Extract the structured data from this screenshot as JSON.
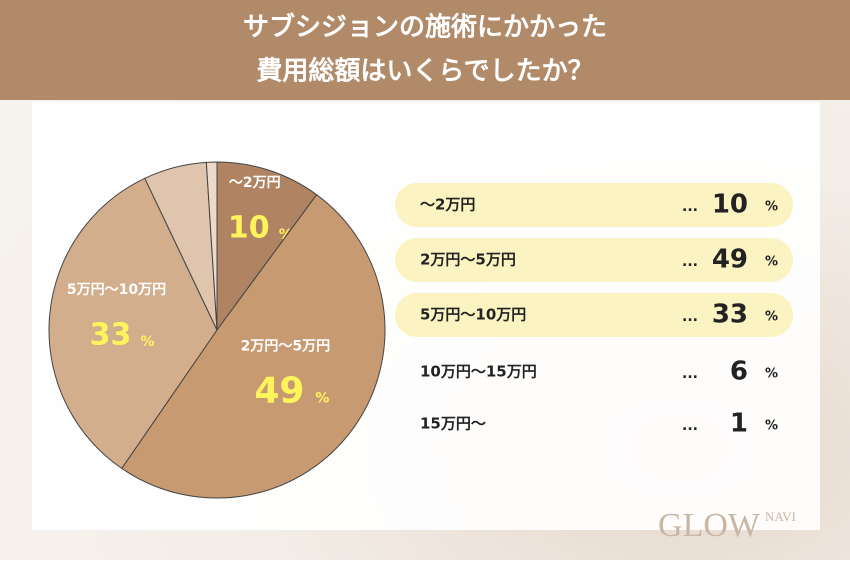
{
  "chart_data": {
    "type": "pie",
    "title": [
      "サブシジョンの施術にかかった",
      "費用総額はいくらでしたか？"
    ],
    "categories": [
      "〜2万円",
      "2万円〜5万円",
      "5万円〜10万円",
      "10万円〜15万円",
      "15万円〜"
    ],
    "values": [
      10,
      49,
      33,
      6,
      1
    ],
    "unit": "%",
    "leader": "...",
    "colors": [
      "#b08462",
      "#c89a72",
      "#d3ae8d",
      "#dfc4ae",
      "#ecd9c8"
    ],
    "logo": "GLOW",
    "logo_sub": "NAVI"
  }
}
